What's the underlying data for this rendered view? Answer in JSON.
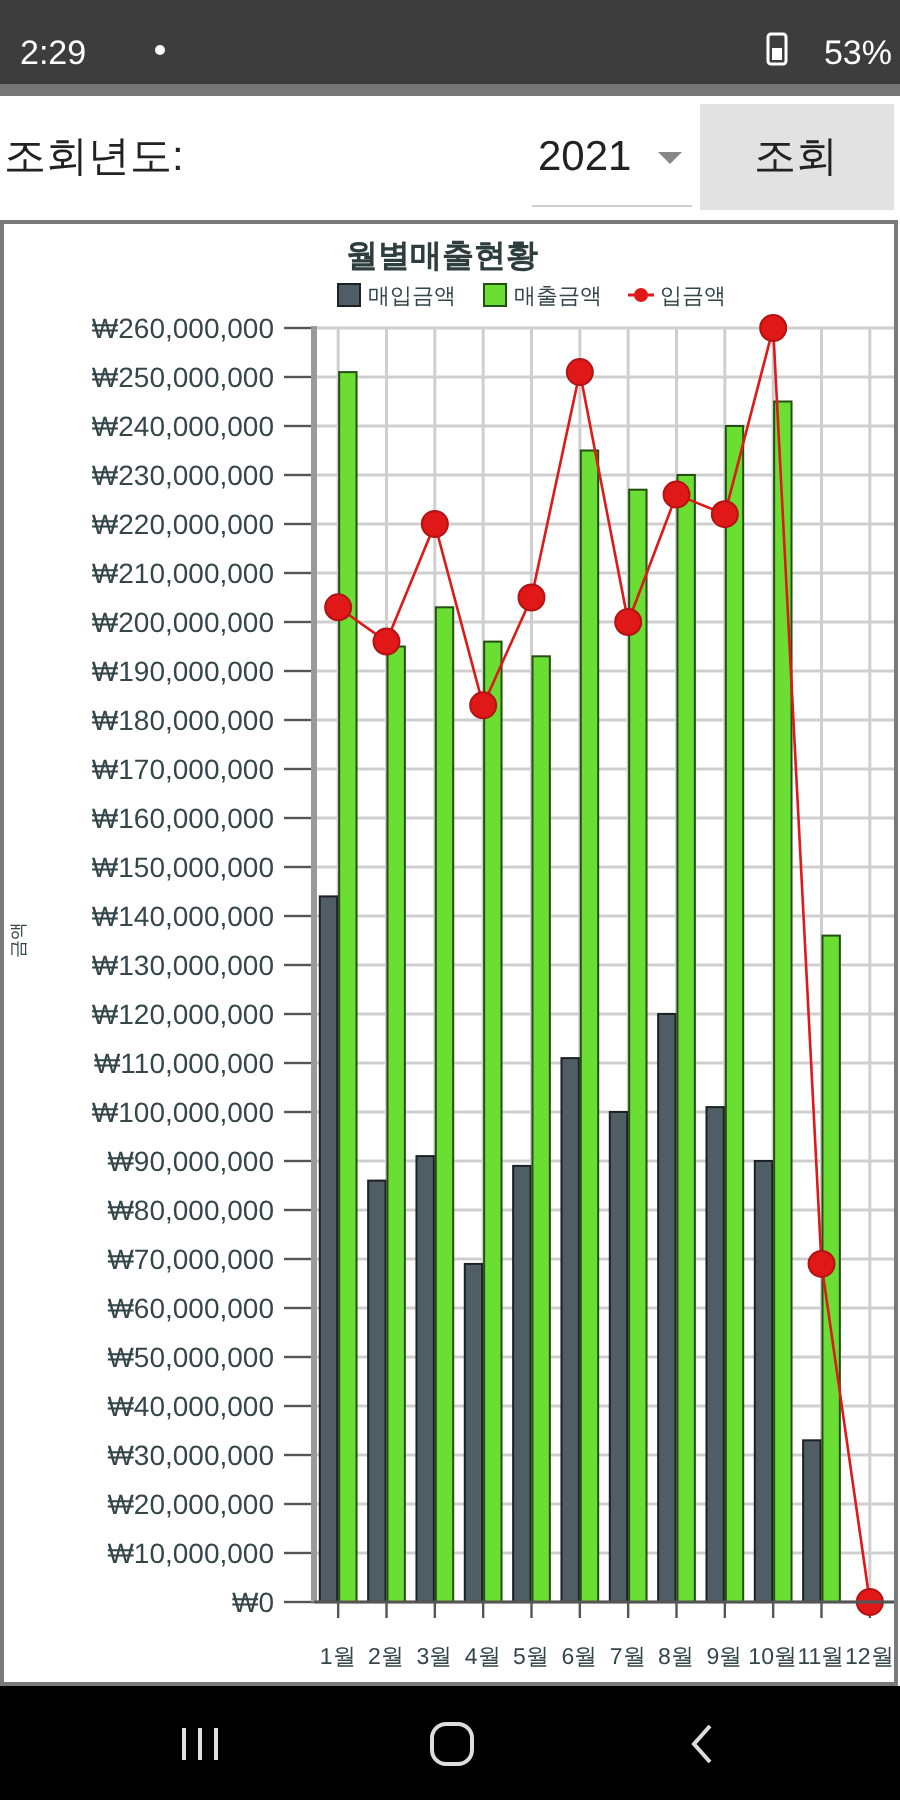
{
  "chart_data": {
    "type": "bar",
    "title": "월별매출현황",
    "ylabel": "금액",
    "categories": [
      "1월",
      "2월",
      "3월",
      "4월",
      "5월",
      "6월",
      "7월",
      "8월",
      "9월",
      "10월",
      "11월",
      "12월"
    ],
    "series": [
      {
        "name": "매입금액",
        "color": "#4f5d65",
        "values": [
          144000000,
          86000000,
          91000000,
          69000000,
          89000000,
          111000000,
          100000000,
          120000000,
          101000000,
          90000000,
          33000000,
          0
        ]
      },
      {
        "name": "매출금액",
        "color": "#6ade32",
        "values": [
          251000000,
          195000000,
          203000000,
          196000000,
          193000000,
          235000000,
          227000000,
          230000000,
          240000000,
          245000000,
          136000000,
          0
        ]
      },
      {
        "name": "입금액",
        "type": "line",
        "color": "#e01818",
        "values": [
          203000000,
          196000000,
          220000000,
          183000000,
          205000000,
          251000000,
          200000000,
          226000000,
          222000000,
          260000000,
          69000000,
          0
        ]
      }
    ],
    "ylim": [
      0,
      260000000
    ],
    "yticks": [
      {
        "value": 0,
        "label": "₩0"
      },
      {
        "value": 10000000,
        "label": "₩10,000,000"
      },
      {
        "value": 20000000,
        "label": "₩20,000,000"
      },
      {
        "value": 30000000,
        "label": "₩30,000,000"
      },
      {
        "value": 40000000,
        "label": "₩40,000,000"
      },
      {
        "value": 50000000,
        "label": "₩50,000,000"
      },
      {
        "value": 60000000,
        "label": "₩60,000,000"
      },
      {
        "value": 70000000,
        "label": "₩70,000,000"
      },
      {
        "value": 80000000,
        "label": "₩80,000,000"
      },
      {
        "value": 90000000,
        "label": "₩90,000,000"
      },
      {
        "value": 100000000,
        "label": "₩100,000,000"
      },
      {
        "value": 110000000,
        "label": "₩110,000,000"
      },
      {
        "value": 120000000,
        "label": "₩120,000,000"
      },
      {
        "value": 130000000,
        "label": "₩130,000,000"
      },
      {
        "value": 140000000,
        "label": "₩140,000,000"
      },
      {
        "value": 150000000,
        "label": "₩150,000,000"
      },
      {
        "value": 160000000,
        "label": "₩160,000,000"
      },
      {
        "value": 170000000,
        "label": "₩170,000,000"
      },
      {
        "value": 180000000,
        "label": "₩180,000,000"
      },
      {
        "value": 190000000,
        "label": "₩190,000,000"
      },
      {
        "value": 200000000,
        "label": "₩200,000,000"
      },
      {
        "value": 210000000,
        "label": "₩210,000,000"
      },
      {
        "value": 220000000,
        "label": "₩220,000,000"
      },
      {
        "value": 230000000,
        "label": "₩230,000,000"
      },
      {
        "value": 240000000,
        "label": "₩240,000,000"
      },
      {
        "value": 250000000,
        "label": "₩250,000,000"
      },
      {
        "value": 260000000,
        "label": "₩260,000,000"
      }
    ],
    "grid": true,
    "legend": "top",
    "marker": "circle",
    "line_style": "solid",
    "annotations": [
      "2:29",
      "53%",
      "조회년도:",
      "2021",
      "조회"
    ]
  }
}
